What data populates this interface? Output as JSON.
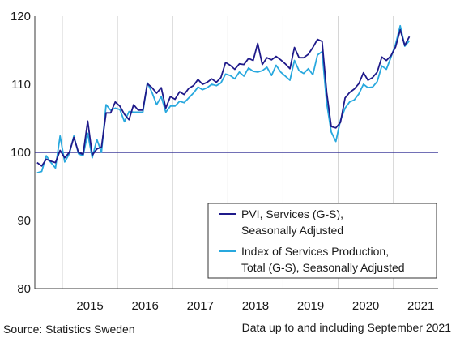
{
  "chart_data": {
    "type": "line",
    "title": "",
    "xlabel": "",
    "ylabel": "",
    "ylim": [
      80,
      120
    ],
    "yticks": [
      80,
      90,
      100,
      110,
      120
    ],
    "xticks": [
      "2015",
      "2016",
      "2017",
      "2018",
      "2019",
      "2020",
      "2021"
    ],
    "x_start": "2014-07",
    "x_end": "2021-09",
    "grid": "vertical year separators",
    "reference_line": 100,
    "legend_position": "bottom-right",
    "series": [
      {
        "name": "PVI, Services (G-S), Seasonally Adjusted",
        "legend_lines": [
          "PVI, Services (G-S),",
          "Seasonally Adjusted"
        ],
        "color": "#1f1a8a",
        "values": [
          98.5,
          98.0,
          99.0,
          98.7,
          98.5,
          100.3,
          99.2,
          100.0,
          102.2,
          100.0,
          99.7,
          104.6,
          99.6,
          100.5,
          100.8,
          105.8,
          105.8,
          107.4,
          106.8,
          105.6,
          104.8,
          107.0,
          106.2,
          106.2,
          110.1,
          109.5,
          108.7,
          109.5,
          106.5,
          108.2,
          107.8,
          108.9,
          108.5,
          109.4,
          109.8,
          110.7,
          110.0,
          110.3,
          110.8,
          110.3,
          111.0,
          113.2,
          112.8,
          112.2,
          113.0,
          112.9,
          113.8,
          113.5,
          116.0,
          112.9,
          113.9,
          113.6,
          114.1,
          113.6,
          113.0,
          112.3,
          115.4,
          113.9,
          113.9,
          114.4,
          115.4,
          116.6,
          116.3,
          108.8,
          103.8,
          103.6,
          104.4,
          108.0,
          108.8,
          109.3,
          110.1,
          111.7,
          110.6,
          111.0,
          111.8,
          114.0,
          113.5,
          114.2,
          115.5,
          118.0,
          115.7,
          117.0
        ]
      },
      {
        "name": "Index of Services Production, Total (G-S), Seasonally Adjusted",
        "legend_lines": [
          "Index of Services Production,",
          "Total (G-S), Seasonally Adjusted"
        ],
        "color": "#28a8de",
        "values": [
          97.0,
          97.2,
          99.5,
          98.5,
          97.7,
          102.4,
          98.6,
          99.8,
          102.4,
          99.8,
          99.5,
          102.8,
          99.2,
          101.9,
          100.0,
          107.0,
          106.2,
          106.5,
          106.3,
          104.5,
          106.0,
          105.9,
          105.9,
          105.9,
          110.2,
          108.8,
          107.0,
          108.2,
          105.9,
          106.8,
          106.8,
          107.5,
          107.3,
          108.0,
          108.7,
          109.6,
          109.2,
          109.5,
          110.0,
          109.8,
          110.2,
          111.5,
          111.3,
          110.8,
          111.8,
          111.2,
          112.4,
          111.9,
          111.8,
          112.0,
          112.5,
          111.3,
          112.8,
          111.8,
          111.2,
          110.6,
          113.5,
          112.0,
          111.6,
          112.3,
          111.4,
          114.3,
          114.8,
          107.2,
          103.0,
          101.6,
          104.7,
          106.5,
          107.4,
          107.7,
          108.6,
          110.0,
          109.5,
          109.6,
          110.4,
          112.7,
          112.2,
          114.0,
          115.9,
          118.6,
          115.6,
          116.4
        ]
      }
    ]
  },
  "footer": {
    "source": "Source: Statistics Sweden",
    "note": "Data up to and including September 2021"
  }
}
